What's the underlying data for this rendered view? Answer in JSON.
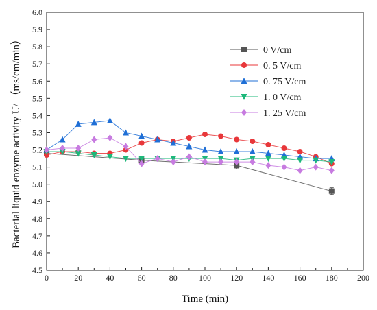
{
  "chart_data": {
    "type": "line",
    "xlabel": "Time (min)",
    "ylabel": "Bacterial liquid enzyme activity U/ （ms/cm/min）",
    "xlim": [
      0,
      200
    ],
    "ylim": [
      4.5,
      6.0
    ],
    "xticks": [
      "0",
      "20",
      "40",
      "60",
      "80",
      "100",
      "120",
      "140",
      "160",
      "180",
      "200"
    ],
    "yticks": [
      "4.5",
      "4.6",
      "4.7",
      "4.8",
      "4.9",
      "5.0",
      "5.1",
      "5.2",
      "5.3",
      "5.4",
      "5.5",
      "5.6",
      "5.7",
      "5.8",
      "5.9",
      "6.0"
    ],
    "grid": false,
    "legend_position": "top-right",
    "series": [
      {
        "name": "0 V/cm",
        "color": "#555555",
        "marker": "square",
        "x": [
          0,
          60,
          120,
          180
        ],
        "y": [
          5.18,
          5.14,
          5.11,
          4.96
        ],
        "err": [
          0.02,
          0.02,
          0.02,
          0.02
        ]
      },
      {
        "name": "0. 5 V/cm",
        "color": "#e8373a",
        "marker": "circle",
        "x": [
          0,
          10,
          20,
          30,
          40,
          50,
          60,
          70,
          80,
          90,
          100,
          110,
          120,
          130,
          140,
          150,
          160,
          170,
          180
        ],
        "y": [
          5.17,
          5.19,
          5.19,
          5.18,
          5.18,
          5.2,
          5.24,
          5.26,
          5.25,
          5.27,
          5.29,
          5.28,
          5.26,
          5.25,
          5.23,
          5.21,
          5.19,
          5.16,
          5.12
        ]
      },
      {
        "name": "0. 75 V/cm",
        "color": "#1f6fd6",
        "marker": "triangle-up",
        "x": [
          0,
          10,
          20,
          30,
          40,
          50,
          60,
          70,
          80,
          90,
          100,
          110,
          120,
          130,
          140,
          150,
          160,
          170,
          180
        ],
        "y": [
          5.2,
          5.26,
          5.35,
          5.36,
          5.37,
          5.3,
          5.28,
          5.26,
          5.24,
          5.22,
          5.2,
          5.19,
          5.19,
          5.19,
          5.18,
          5.17,
          5.16,
          5.15,
          5.15
        ]
      },
      {
        "name": "1. 0 V/cm",
        "color": "#1db87a",
        "marker": "triangle-down",
        "x": [
          0,
          10,
          20,
          30,
          40,
          50,
          60,
          70,
          80,
          90,
          100,
          110,
          120,
          130,
          140,
          150,
          160,
          170,
          180
        ],
        "y": [
          5.19,
          5.19,
          5.18,
          5.17,
          5.16,
          5.15,
          5.15,
          5.15,
          5.15,
          5.15,
          5.15,
          5.15,
          5.14,
          5.15,
          5.15,
          5.15,
          5.14,
          5.14,
          5.13
        ]
      },
      {
        "name": "1. 25 V/cm",
        "color": "#c77be0",
        "marker": "diamond",
        "x": [
          0,
          10,
          20,
          30,
          40,
          50,
          60,
          70,
          80,
          90,
          100,
          110,
          120,
          130,
          140,
          150,
          160,
          170,
          180
        ],
        "y": [
          5.2,
          5.21,
          5.21,
          5.26,
          5.27,
          5.22,
          5.12,
          5.15,
          5.13,
          5.16,
          5.13,
          5.13,
          5.13,
          5.13,
          5.11,
          5.1,
          5.08,
          5.1,
          5.08
        ]
      }
    ]
  }
}
